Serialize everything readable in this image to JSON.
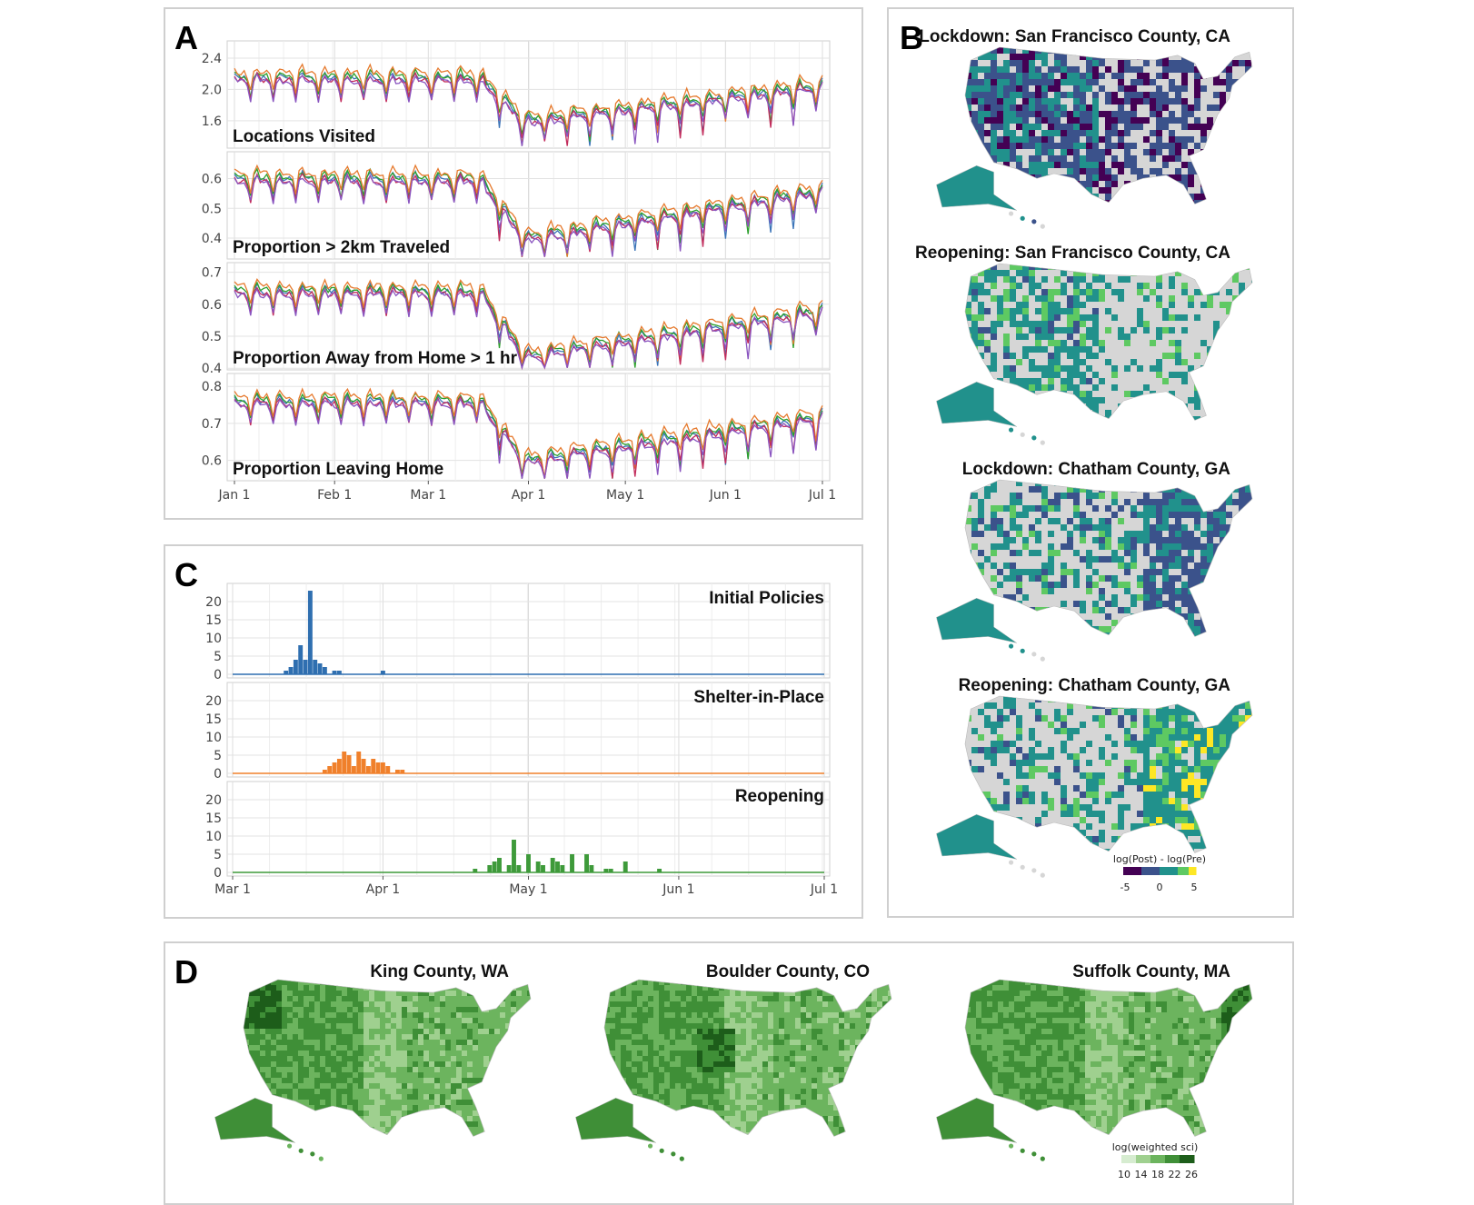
{
  "panels": {
    "a": {
      "letter": "A"
    },
    "b": {
      "letter": "B"
    },
    "c": {
      "letter": "C"
    },
    "d": {
      "letter": "D"
    }
  },
  "colors": {
    "series_a": [
      "#3b74b8",
      "#2ca02c",
      "#e67a2e",
      "#c22c5c",
      "#8a55c0"
    ],
    "blue_bar": "#2f6fb0",
    "orange_bar": "#f0802b",
    "green_bar": "#3e9a3a",
    "grid": "#e4e4e4",
    "map_land_gray": "#d6d6d6",
    "viridis": [
      "#440154",
      "#3b528b",
      "#21918c",
      "#5ec962",
      "#fde725"
    ],
    "greens": [
      "#d6ecd0",
      "#9fd08f",
      "#6cb45e",
      "#3f8f37",
      "#1d5d1a"
    ]
  },
  "chart_data": [
    {
      "type": "line",
      "panel": "A",
      "x_labels": [
        "Jan 1",
        "Feb  1",
        "Mar  1",
        "Apr 1",
        "May 1",
        "Jun 1",
        "Jul 1"
      ],
      "x_range": [
        "2020-01-01",
        "2020-07-01"
      ],
      "facets": [
        {
          "title": "Locations Visited",
          "yticks": [
            "1.6",
            "2.0",
            "2.4"
          ],
          "ylim": [
            1.25,
            2.62
          ],
          "base": {
            "pre": 2.15,
            "trough": 1.6,
            "end": 2.05
          }
        },
        {
          "title": "Proportion > 2km Traveled",
          "yticks": [
            "0.4",
            "0.5",
            "0.6"
          ],
          "ylim": [
            0.33,
            0.69
          ],
          "base": {
            "pre": 0.6,
            "trough": 0.4,
            "end": 0.56
          }
        },
        {
          "title": "Proportion Away from Home > 1 hr",
          "yticks": [
            "0.4",
            "0.5",
            "0.6",
            "0.7"
          ],
          "ylim": [
            0.395,
            0.73
          ],
          "base": {
            "pre": 0.64,
            "trough": 0.44,
            "end": 0.58
          }
        },
        {
          "title": "Proportion Leaving Home",
          "yticks": [
            "0.6",
            "0.7",
            "0.8"
          ],
          "ylim": [
            0.545,
            0.835
          ],
          "base": {
            "pre": 0.76,
            "trough": 0.6,
            "end": 0.72
          }
        }
      ],
      "series_count": 5
    },
    {
      "type": "bar",
      "panel": "C",
      "x_labels": [
        "Mar  1",
        "Apr 1",
        "May 1",
        "Jun 1",
        "Jul 1"
      ],
      "yticks": [
        "0",
        "5",
        "10",
        "15",
        "20"
      ],
      "ylim": [
        0,
        24
      ],
      "facets": [
        {
          "title": "Initial Policies",
          "color_key": "blue_bar",
          "bars": [
            [
              11,
              1
            ],
            [
              12,
              2
            ],
            [
              13,
              4
            ],
            [
              14,
              8
            ],
            [
              15,
              4
            ],
            [
              16,
              23
            ],
            [
              17,
              4
            ],
            [
              18,
              3
            ],
            [
              19,
              2
            ],
            [
              21,
              1
            ],
            [
              22,
              1
            ],
            [
              31,
              1
            ]
          ]
        },
        {
          "title": "Shelter-in-Place",
          "color_key": "orange_bar",
          "bars": [
            [
              19,
              1
            ],
            [
              20,
              2
            ],
            [
              21,
              3
            ],
            [
              22,
              4
            ],
            [
              23,
              6
            ],
            [
              24,
              5
            ],
            [
              25,
              2
            ],
            [
              26,
              6
            ],
            [
              27,
              4
            ],
            [
              28,
              2
            ],
            [
              29,
              4
            ],
            [
              30,
              3
            ],
            [
              31,
              3
            ],
            [
              32,
              2
            ],
            [
              34,
              1
            ],
            [
              35,
              1
            ]
          ]
        },
        {
          "title": "Reopening",
          "color_key": "green_bar",
          "bars": [
            [
              50,
              1
            ],
            [
              53,
              2
            ],
            [
              54,
              3
            ],
            [
              55,
              4
            ],
            [
              57,
              2
            ],
            [
              58,
              9
            ],
            [
              59,
              2
            ],
            [
              61,
              5
            ],
            [
              63,
              3
            ],
            [
              64,
              2
            ],
            [
              66,
              4
            ],
            [
              67,
              3
            ],
            [
              68,
              2
            ],
            [
              70,
              5
            ],
            [
              73,
              5
            ],
            [
              74,
              2
            ],
            [
              77,
              1
            ],
            [
              78,
              1
            ],
            [
              81,
              3
            ],
            [
              88,
              1
            ]
          ]
        }
      ]
    }
  ],
  "panel_b": {
    "maps": [
      {
        "title": "Lockdown: San Francisco County, CA",
        "tone": "dark"
      },
      {
        "title": "Reopening: San Francisco County, CA",
        "tone": "teal"
      },
      {
        "title": "Lockdown: Chatham County, GA",
        "tone": "east"
      },
      {
        "title": "Reopening: Chatham County, GA",
        "tone": "mixed"
      }
    ],
    "legend": {
      "title": "log(Post) - log(Pre)",
      "ticks": [
        "-5",
        "0",
        "5"
      ]
    }
  },
  "panel_d": {
    "maps": [
      {
        "title": "King County, WA"
      },
      {
        "title": "Boulder County, CO"
      },
      {
        "title": "Suffolk County, MA"
      }
    ],
    "legend": {
      "title": "log(weighted sci)",
      "ticks": [
        "10",
        "14",
        "18",
        "22",
        "26"
      ]
    }
  }
}
